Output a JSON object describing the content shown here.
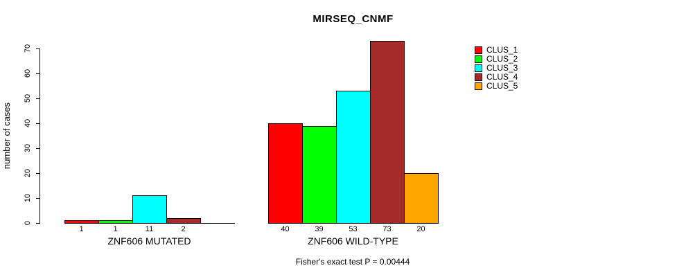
{
  "chart_data": {
    "type": "bar",
    "title": "MIRSEQ_CNMF",
    "ylabel": "number of cases",
    "xlabel": "",
    "ylim": [
      0,
      70
    ],
    "yticks": [
      0,
      10,
      20,
      30,
      40,
      50,
      60,
      70
    ],
    "grid": false,
    "background": "#FFFFFF",
    "axis_color": "#000000",
    "categories": [
      "ZNF606 MUTATED",
      "ZNF606 WILD-TYPE"
    ],
    "series": [
      {
        "name": "CLUS_1",
        "color": "#FF0000",
        "values": [
          1,
          40
        ]
      },
      {
        "name": "CLUS_2",
        "color": "#00FF00",
        "values": [
          1,
          39
        ]
      },
      {
        "name": "CLUS_3",
        "color": "#00FFFF",
        "values": [
          11,
          53
        ]
      },
      {
        "name": "CLUS_4",
        "color": "#A52A2A",
        "values": [
          2,
          73
        ]
      },
      {
        "name": "CLUS_5",
        "color": "#FFA500",
        "values": [
          0,
          20
        ]
      }
    ],
    "bar_labels": [
      [
        "1",
        "1",
        "11",
        "2",
        ""
      ],
      [
        "40",
        "39",
        "53",
        "73",
        "20"
      ]
    ],
    "legend": {
      "position": "right",
      "entries": [
        "CLUS_1",
        "CLUS_2",
        "CLUS_3",
        "CLUS_4",
        "CLUS_5"
      ]
    },
    "footnote": "Fisher's exact test P = 0.00444"
  }
}
